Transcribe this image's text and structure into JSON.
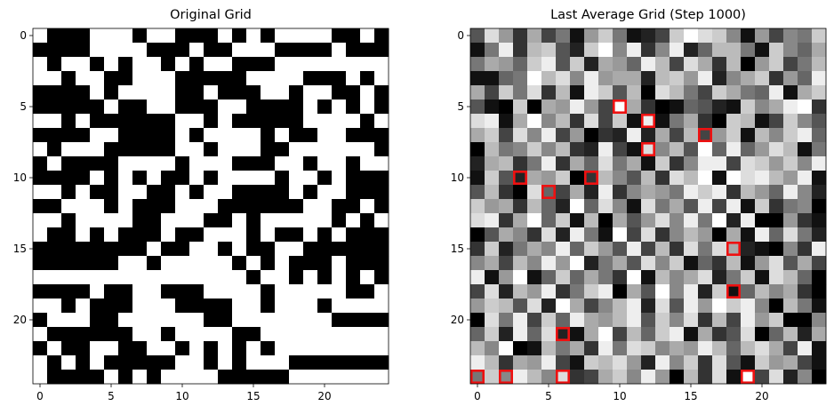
{
  "chart_data": [
    {
      "type": "heatmap",
      "title": "Original Grid",
      "colormap": "gray",
      "value_range": [
        0,
        1
      ],
      "x_ticks": [
        0,
        5,
        10,
        15,
        20
      ],
      "y_ticks": [
        0,
        5,
        10,
        15,
        20
      ],
      "rows": [
        "1000111011000101011110010",
        "0000111100010011100001000",
        "1011010110101100011111111",
        "1101100111000001111000101",
        "0000101111001000110110010",
        "0000010011000110000101010",
        "1101000000110100000111101",
        "0000110000101111010011000",
        "1011100000110111001111110",
        "0100001111011100011011011",
        "0000101010010111101101000",
        "1101001100101100001011000",
        "0011101000111000000110010",
        "1101111001110010111110101",
        "1001010001001110100101000",
        "0000000010011010011000000",
        "0000001101111101010001000",
        "1111111111111110110101010",
        "0000100110001111011111001",
        "1101000111000011011101111",
        "0111001111110011111110000",
        "1000000110111100111111111",
        "0100110011010101011111111",
        "1010100000110101110000000",
        "1000010101111000001111111"
      ]
    },
    {
      "type": "heatmap",
      "title": "Last Average Grid (Step 1000)",
      "colormap": "gray",
      "value_range": [
        0,
        1
      ],
      "x_ticks": [
        0,
        5,
        10,
        15,
        20
      ],
      "y_ticks": [
        0,
        5,
        10,
        15,
        20
      ],
      "rows": [
        "5D93A4719C7124CFDC819487C",
        "17E3BC52CF8E38E26BB71C86A",
        "7A96CE5C2A96EB4DA3B09C47B",
        "1167FBD8E9AA2BC9E28AC396E",
        "A4C7D3B1EC5B0DB74CA76E1AC",
        "510C0A9E94FA3016521C8AEF3",
        "DE1AF8B3D4C1E17A30CB14C85",
        "AC4D8E49032E2A4B49C1B8CE6",
        "0B78C8B32E41D8B5F6E69DB17",
        "2AB37E3A6D7A1C38EE4DC9C8E",
        "1C52A9C03B85B3DBF1FDEB9E1",
        "5B30D64A2E38A97ECE3B96E82",
        "C9A3B62F6D81D7A5E4E1C3780",
        "DE3AF6C1B0A59D8E7F2E00931",
        "05A83D2E71F4D38B90A1E6D72",
        "3C27A8E6C95E4B3D7DA21083E",
        "8A4B8E9F27A5D8C163B19D5A4",
        "E19F16C6A73F1B8AD27C1DB60",
        "4D2B9E37CE0A5F8E2C16B8A30",
        "9CB5D2FA48BE2D5E9FCE80B71",
        "0D7E4C6EA9BE5C8D3B4E9C008",
        "6C2E6D21AF4B6CE1A35D06B2A",
        "B8F01B7A3E7DC8A9EB6BDA4E1",
        "EB3A9E41CBD92E8C3D51C9A41",
        "7C8EB8D34AC8E90B3D1F4D280"
      ],
      "highlighted_cells": [
        {
          "x": 10,
          "y": 5
        },
        {
          "x": 12,
          "y": 6
        },
        {
          "x": 16,
          "y": 7
        },
        {
          "x": 12,
          "y": 8
        },
        {
          "x": 3,
          "y": 10
        },
        {
          "x": 8,
          "y": 10
        },
        {
          "x": 5,
          "y": 11
        },
        {
          "x": 18,
          "y": 15
        },
        {
          "x": 18,
          "y": 18
        },
        {
          "x": 6,
          "y": 21
        },
        {
          "x": 0,
          "y": 24
        },
        {
          "x": 2,
          "y": 24
        },
        {
          "x": 6,
          "y": 24
        },
        {
          "x": 19,
          "y": 24
        }
      ],
      "highlight_color": "#ee1111"
    }
  ]
}
